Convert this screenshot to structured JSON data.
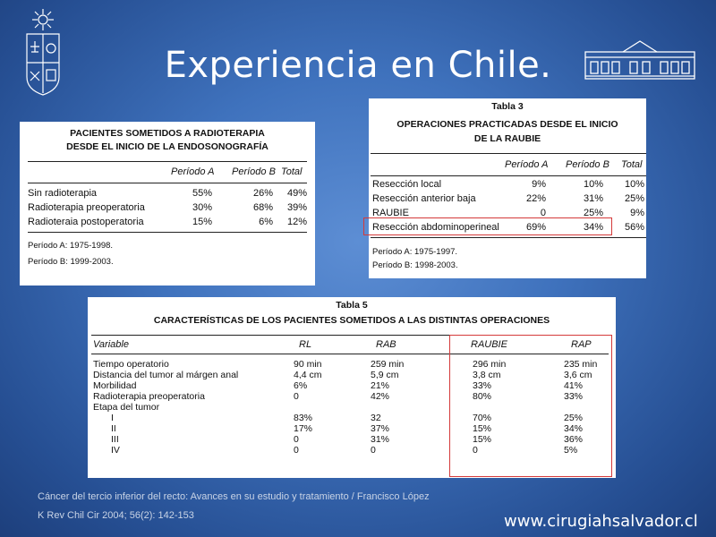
{
  "slide": {
    "title": "Experiencia en Chile.",
    "website": "www.cirugiahsalvador.cl",
    "citation_line1": "Cáncer del tercio inferior del recto: Avances en su estudio y tratamiento / Francisco López",
    "citation_line2": "K Rev Chil Cir 2004; 56(2): 142-153",
    "logo_left": "university-crest-icon",
    "logo_right": "hospital-building-icon",
    "highlight_color": "#d43a3a"
  },
  "table1": {
    "heading_line1": "PACIENTES SOMETIDOS A RADIOTERAPIA",
    "heading_line2": "DESDE EL INICIO DE LA ENDOSONOGRAFÍA",
    "columns": [
      "Período A",
      "Período B",
      "Total"
    ],
    "rows": [
      {
        "label": "Sin radioterapia",
        "a": "55%",
        "b": "26%",
        "total": "49%"
      },
      {
        "label": "Radioterapia preoperatoria",
        "a": "30%",
        "b": "68%",
        "total": "39%"
      },
      {
        "label": "Radioteraia postoperatoria",
        "a": "15%",
        "b": "6%",
        "total": "12%"
      }
    ],
    "note1": "Período A: 1975-1998.",
    "note2": "Período B: 1999-2003."
  },
  "table3": {
    "caption": "Tabla 3",
    "heading_line1": "OPERACIONES PRACTICADAS DESDE EL INICIO",
    "heading_line2": "DE LA RAUBIE",
    "columns": [
      "Período A",
      "Período B",
      "Total"
    ],
    "rows": [
      {
        "label": "Resección local",
        "a": "9%",
        "b": "10%",
        "total": "10%"
      },
      {
        "label": "Resección anterior baja",
        "a": "22%",
        "b": "31%",
        "total": "25%"
      },
      {
        "label": "RAUBIE",
        "a": "0",
        "b": "25%",
        "total": "9%"
      },
      {
        "label": "Resección abdominoperineal",
        "a": "69%",
        "b": "34%",
        "total": "56%"
      }
    ],
    "note1": "Período A: 1975-1997.",
    "note2": "Período B: 1998-2003."
  },
  "table5": {
    "caption": "Tabla 5",
    "heading": "CARACTERÍSTICAS DE LOS PACIENTES SOMETIDOS A LAS DISTINTAS OPERACIONES",
    "columns": [
      "Variable",
      "RL",
      "RAB",
      "RAUBIE",
      "RAP"
    ],
    "rows": [
      {
        "label": "Tiempo operatorio",
        "rl": "90 min",
        "rab": "259 min",
        "raubie": "296 min",
        "rap": "235 min"
      },
      {
        "label": "Distancia del tumor al márgen anal",
        "rl": "4,4 cm",
        "rab": "5,9 cm",
        "raubie": "3,8 cm",
        "rap": "3,6 cm"
      },
      {
        "label": "Morbilidad",
        "rl": "6%",
        "rab": "21%",
        "raubie": "33%",
        "rap": "41%"
      },
      {
        "label": "Radioterapia preoperatoria",
        "rl": "0",
        "rab": "42%",
        "raubie": "80%",
        "rap": "33%"
      },
      {
        "label": "Etapa del tumor",
        "rl": "",
        "rab": "",
        "raubie": "",
        "rap": ""
      },
      {
        "label": "I",
        "rl": "83%",
        "rab": "32",
        "raubie": "70%",
        "rap": "25%"
      },
      {
        "label": "II",
        "rl": "17%",
        "rab": "37%",
        "raubie": "15%",
        "rap": "34%"
      },
      {
        "label": "III",
        "rl": "0",
        "rab": "31%",
        "raubie": "15%",
        "rap": "36%"
      },
      {
        "label": "IV",
        "rl": "0",
        "rab": "0",
        "raubie": "0",
        "rap": "5%"
      }
    ]
  }
}
